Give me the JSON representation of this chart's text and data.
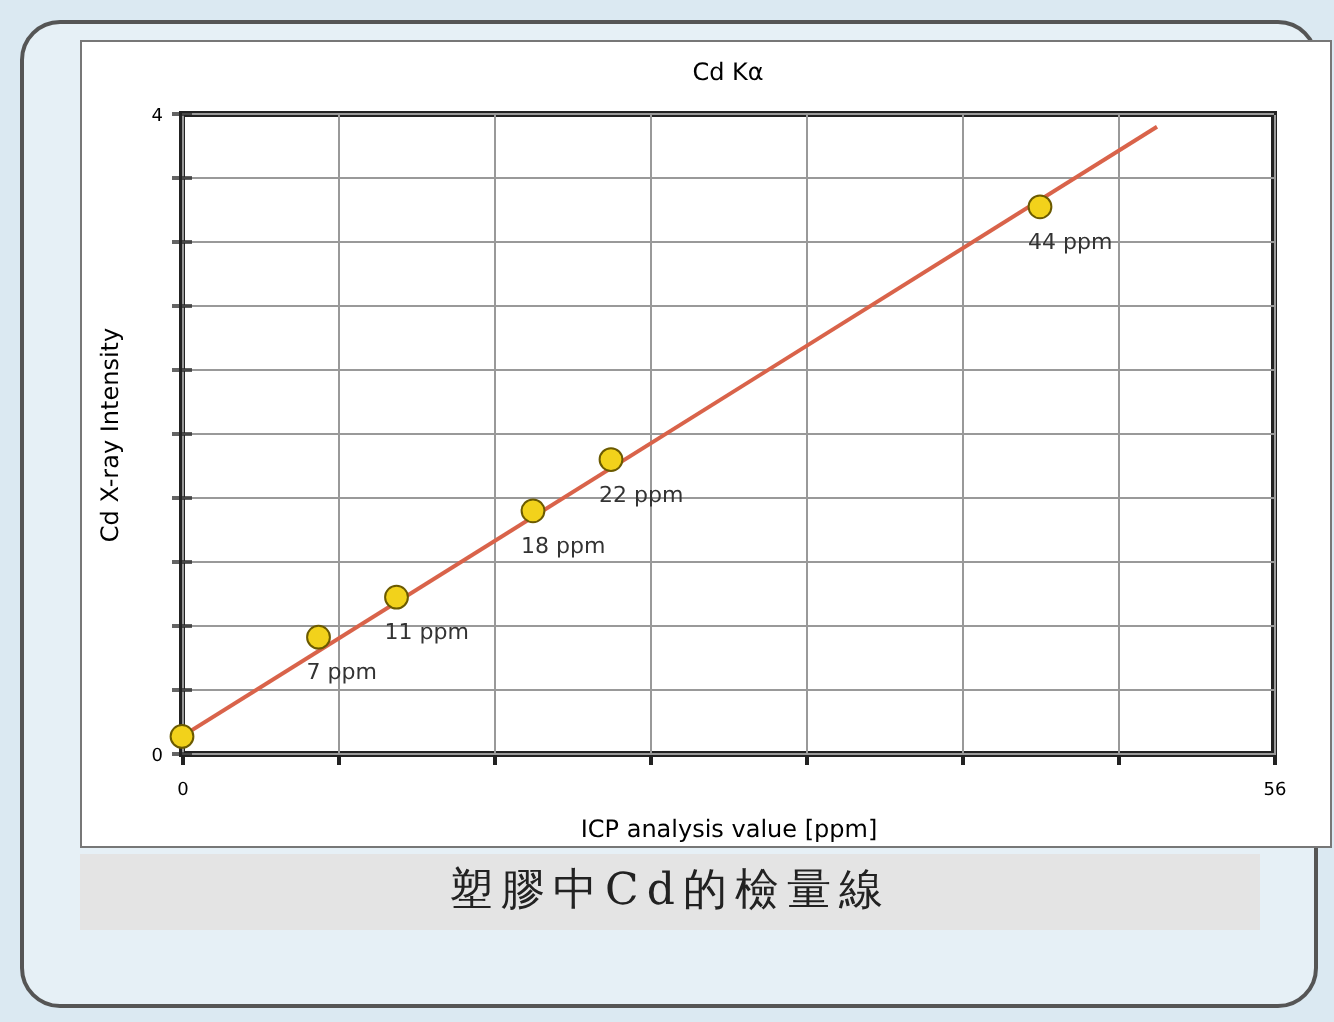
{
  "chart_data": {
    "type": "scatter",
    "title": "Cd Kα",
    "xlabel": "ICP analysis value [ppm]",
    "ylabel": "Cd X-ray Intensity",
    "xlim": [
      0,
      56
    ],
    "ylim": [
      0,
      4
    ],
    "xticks": [
      0,
      {
        "value": 8,
        "label": null
      },
      {
        "value": 16,
        "label": null
      },
      {
        "value": 24,
        "label": null
      },
      {
        "value": 32,
        "label": null
      },
      {
        "value": 40,
        "label": null
      },
      {
        "value": 48,
        "label": null
      },
      56
    ],
    "yticks": [
      0,
      {
        "value": 0.4,
        "label": null
      },
      {
        "value": 0.8,
        "label": null
      },
      {
        "value": 1.2,
        "label": null
      },
      {
        "value": 1.6,
        "label": null
      },
      {
        "value": 2,
        "label": null
      },
      {
        "value": 2.4,
        "label": null
      },
      {
        "value": 2.8,
        "label": null
      },
      {
        "value": 3.2,
        "label": null
      },
      {
        "value": 3.6,
        "label": null
      },
      4
    ],
    "grid": true,
    "line_style": "solid",
    "series": [
      {
        "type": "line",
        "color": "#d9634a",
        "x": [
          0,
          50
        ],
        "values": [
          0.11,
          3.92
        ]
      },
      {
        "color": "#f2d21b",
        "marker": "circle",
        "x": [
          0,
          7,
          11,
          18,
          22,
          44
        ],
        "values": [
          0.11,
          0.73,
          0.98,
          1.52,
          1.84,
          3.42
        ]
      }
    ],
    "annotations": [
      {
        "text": "7 ppm",
        "x": 7,
        "y": 0.73
      },
      {
        "text": "11 ppm",
        "x": 11,
        "y": 0.98
      },
      {
        "text": "18 ppm",
        "x": 18,
        "y": 1.52
      },
      {
        "text": "22 ppm",
        "x": 22,
        "y": 1.84
      },
      {
        "text": "44 ppm",
        "x": 44,
        "y": 3.42
      },
      "塑膠中Cd的檢量線"
    ]
  }
}
